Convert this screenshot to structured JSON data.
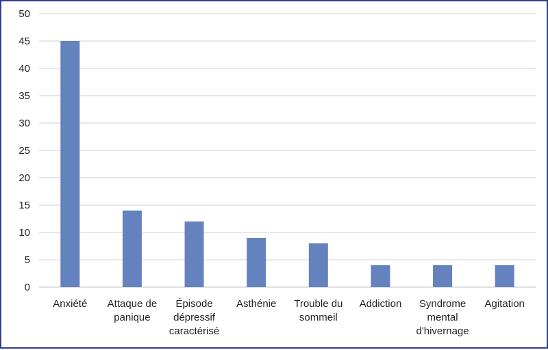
{
  "chart_data": {
    "type": "bar",
    "title": "",
    "xlabel": "",
    "ylabel": "",
    "categories": [
      [
        "Anxiété"
      ],
      [
        "Attaque de",
        "panique"
      ],
      [
        "Épisode",
        "dépressif",
        "caractérisé"
      ],
      [
        "Asthénie"
      ],
      [
        "Trouble du",
        "sommeil"
      ],
      [
        "Addiction"
      ],
      [
        "Syndrome",
        "mental",
        "d'hivernage"
      ],
      [
        "Agitation"
      ]
    ],
    "values": [
      45,
      14,
      12,
      9,
      8,
      4,
      4,
      4
    ],
    "ylim": [
      0,
      50
    ],
    "yticks": [
      0,
      5,
      10,
      15,
      20,
      25,
      30,
      35,
      40,
      45,
      50
    ],
    "grid": true,
    "legend": "none",
    "colors": {
      "bar": "#6482be",
      "grid": "#d0d0d0",
      "axis": "#bfbfbf",
      "border": "#2f3f8f"
    }
  }
}
